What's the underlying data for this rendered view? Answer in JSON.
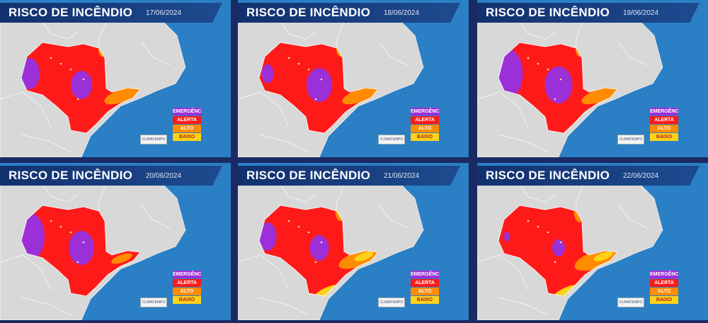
{
  "title": "RISCO DE INCÊNDIO",
  "panels": [
    {
      "date": "17/06/2024",
      "purple_west": 1.0,
      "purple_center": 1.0,
      "coast_orange": 1.0,
      "south_yellow": 0
    },
    {
      "date": "18/06/2024",
      "purple_west": 0.6,
      "purple_center": 1.2,
      "coast_orange": 1.0,
      "south_yellow": 0
    },
    {
      "date": "19/06/2024",
      "purple_west": 1.6,
      "purple_center": 1.3,
      "coast_orange": 1.0,
      "south_yellow": 0
    },
    {
      "date": "20/06/2024",
      "purple_west": 1.5,
      "purple_center": 1.2,
      "coast_orange": 0.6,
      "south_yellow": 0
    },
    {
      "date": "21/06/2024",
      "purple_west": 0.9,
      "purple_center": 0.9,
      "coast_orange": 1.2,
      "south_yellow": 1
    },
    {
      "date": "22/06/2024",
      "purple_west": 0.3,
      "purple_center": 0.6,
      "coast_orange": 1.4,
      "south_yellow": 1
    }
  ],
  "legend": [
    {
      "label": "EMERGÊNCIA",
      "color": "#9b30d9",
      "text_color": "#ffffff"
    },
    {
      "label": "ALERTA",
      "color": "#ff1a1a",
      "text_color": "#ffffff"
    },
    {
      "label": "ALTO",
      "color": "#ff8c00",
      "text_color": "#ffffff"
    },
    {
      "label": "BAIXO",
      "color": "#ffd21a",
      "text_color": "#b31a1a"
    }
  ],
  "logo_text": "CLIMATEMPO",
  "colors": {
    "ocean": "#2b7fc4",
    "land": "#d8d8d8",
    "state_border": "#ffffff",
    "alert": "#ff1a1a",
    "emergency": "#9b30d9",
    "high": "#ff8c00",
    "low": "#ffd21a"
  }
}
